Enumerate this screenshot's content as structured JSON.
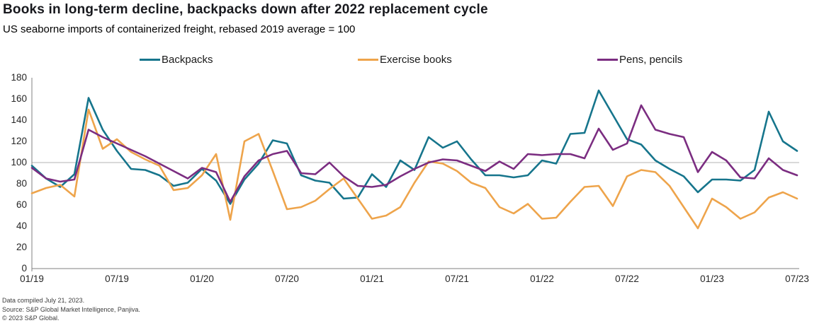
{
  "header": {
    "title": "Books in long-term decline, backpacks down after 2022 replacement cycle",
    "subtitle": "US seaborne imports of containerized freight, rebased 2019 average = 100"
  },
  "footer": {
    "line1": "Data compiled July 21, 2023.",
    "line2": "Source: S&P Global Market Intelligence, Panjiva.",
    "line3": "© 2023 S&P Global."
  },
  "chart_data": {
    "type": "line",
    "title": "Books in long-term decline, backpacks down after 2022 replacement cycle",
    "subtitle": "US seaborne imports of containerized freight, rebased 2019 average = 100",
    "x_unit": "month",
    "x_start_label": "01/19",
    "x_end_label": "07/23",
    "months_count": 55,
    "x_tick_positions": [
      0,
      6,
      12,
      18,
      24,
      30,
      36,
      42,
      48,
      54
    ],
    "x_tick_labels": [
      "01/19",
      "07/19",
      "01/20",
      "07/20",
      "01/21",
      "07/21",
      "01/22",
      "07/22",
      "01/23",
      "07/23"
    ],
    "ylim": [
      0,
      180
    ],
    "ytick_step": 20,
    "reference_line": 100,
    "grid": "single horizontal reference line at 100",
    "legend_position": "top",
    "axis_color": "#808080",
    "gridline_color": "#b3b3b3",
    "series": [
      {
        "id": "backpacks",
        "name": "Backpacks",
        "color": "#16758c",
        "values": [
          97,
          85,
          77,
          89,
          161,
          131,
          111,
          94,
          93,
          88,
          78,
          81,
          94,
          83,
          61,
          84,
          99,
          121,
          118,
          88,
          83,
          81,
          66,
          67,
          89,
          77,
          102,
          93,
          124,
          114,
          120,
          103,
          88,
          88,
          86,
          88,
          102,
          99,
          127,
          128,
          168,
          145,
          122,
          117,
          102,
          94,
          87,
          72,
          84,
          84,
          83,
          93,
          148,
          120,
          111
        ]
      },
      {
        "id": "exercise-books",
        "name": "Exercise books",
        "color": "#eea44b",
        "values": [
          71,
          76,
          79,
          68,
          150,
          113,
          122,
          110,
          103,
          97,
          74,
          76,
          88,
          108,
          46,
          120,
          127,
          92,
          56,
          58,
          64,
          75,
          85,
          66,
          47,
          50,
          58,
          81,
          101,
          99,
          92,
          81,
          76,
          58,
          52,
          61,
          47,
          48,
          63,
          77,
          78,
          59,
          87,
          93,
          91,
          78,
          58,
          38,
          66,
          58,
          47,
          53,
          67,
          72,
          66
        ]
      },
      {
        "id": "pens-pencils",
        "name": "Pens, pencils",
        "color": "#7b2d81",
        "values": [
          95,
          85,
          82,
          84,
          131,
          124,
          118,
          112,
          106,
          99,
          92,
          85,
          95,
          91,
          63,
          87,
          102,
          108,
          111,
          90,
          89,
          100,
          87,
          78,
          77,
          79,
          87,
          94,
          100,
          103,
          102,
          97,
          92,
          101,
          94,
          108,
          107,
          108,
          108,
          104,
          132,
          112,
          118,
          154,
          131,
          127,
          124,
          91,
          110,
          102,
          86,
          85,
          104,
          93,
          88
        ]
      }
    ]
  }
}
